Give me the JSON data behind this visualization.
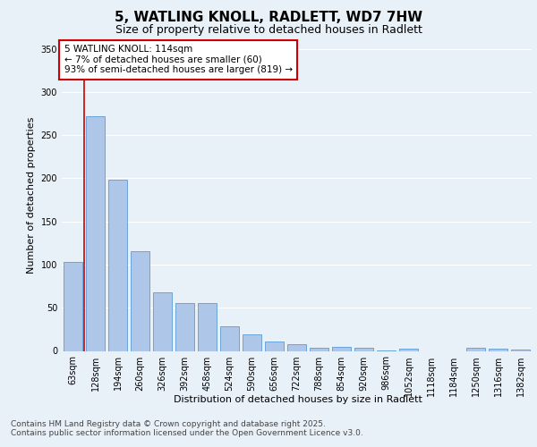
{
  "title_line1": "5, WATLING KNOLL, RADLETT, WD7 7HW",
  "title_line2": "Size of property relative to detached houses in Radlett",
  "xlabel": "Distribution of detached houses by size in Radlett",
  "ylabel": "Number of detached properties",
  "categories": [
    "63sqm",
    "128sqm",
    "194sqm",
    "260sqm",
    "326sqm",
    "392sqm",
    "458sqm",
    "524sqm",
    "590sqm",
    "656sqm",
    "722sqm",
    "788sqm",
    "854sqm",
    "920sqm",
    "986sqm",
    "1052sqm",
    "1118sqm",
    "1184sqm",
    "1250sqm",
    "1316sqm",
    "1382sqm"
  ],
  "values": [
    103,
    272,
    198,
    115,
    68,
    55,
    55,
    28,
    19,
    11,
    8,
    4,
    5,
    4,
    1,
    3,
    0,
    0,
    4,
    3,
    2
  ],
  "bar_color": "#aec6e8",
  "bar_edge_color": "#5b9bd5",
  "vline_color": "#cc0000",
  "annotation_text": "5 WATLING KNOLL: 114sqm\n← 7% of detached houses are smaller (60)\n93% of semi-detached houses are larger (819) →",
  "annotation_box_color": "#ffffff",
  "annotation_box_edge_color": "#cc0000",
  "ylim": [
    0,
    360
  ],
  "yticks": [
    0,
    50,
    100,
    150,
    200,
    250,
    300,
    350
  ],
  "background_color": "#e8f0f8",
  "grid_color": "#ffffff",
  "footer_text": "Contains HM Land Registry data © Crown copyright and database right 2025.\nContains public sector information licensed under the Open Government Licence v3.0.",
  "title_fontsize": 11,
  "subtitle_fontsize": 9,
  "axis_label_fontsize": 8,
  "tick_fontsize": 7,
  "annotation_fontsize": 7.5,
  "footer_fontsize": 6.5
}
